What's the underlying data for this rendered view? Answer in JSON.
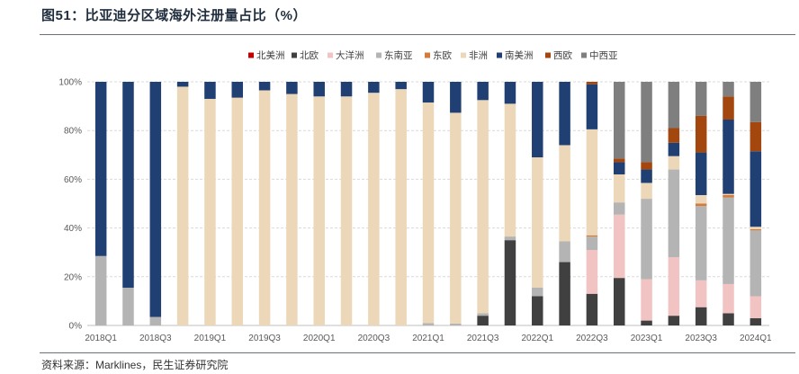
{
  "page": {
    "title": "图51：比亚迪分区域海外注册量占比（%）",
    "source": "资料来源：Marklines，民生证券研究院"
  },
  "colors": {
    "北美洲": "#c00000",
    "北欧": "#404040",
    "大洋洲": "#f2c3c3",
    "东南亚": "#b4b4b4",
    "东欧": "#d47a3a",
    "非洲": "#ecd7b8",
    "南美洲": "#203f73",
    "西欧": "#a3470e",
    "中西亚": "#7f7f7f"
  },
  "chart_data": {
    "type": "bar",
    "stacked": true,
    "title": "图51：比亚迪分区域海外注册量占比（%）",
    "ylim": [
      0,
      100
    ],
    "yticks": [
      "0%",
      "20%",
      "40%",
      "60%",
      "80%",
      "100%"
    ],
    "ytick_values": [
      0,
      20,
      40,
      60,
      80,
      100
    ],
    "legend_position": "top",
    "categories": [
      "2018Q1",
      "2018Q2",
      "2018Q3",
      "2018Q4",
      "2019Q1",
      "2019Q2",
      "2019Q3",
      "2019Q4",
      "2020Q1",
      "2020Q2",
      "2020Q3",
      "2020Q4",
      "2021Q1",
      "2021Q2",
      "2021Q3",
      "2021Q4",
      "2022Q1",
      "2022Q2",
      "2022Q3",
      "2022Q4",
      "2023Q1",
      "2023Q2",
      "2023Q3",
      "2023Q4",
      "2024Q1"
    ],
    "xtick_labels": [
      "2018Q1",
      "",
      "2018Q3",
      "",
      "2019Q1",
      "",
      "2019Q3",
      "",
      "2020Q1",
      "",
      "2020Q3",
      "",
      "2021Q1",
      "",
      "2021Q3",
      "",
      "2022Q1",
      "",
      "2022Q3",
      "",
      "2023Q1",
      "",
      "2023Q3",
      "",
      "2024Q1"
    ],
    "series": [
      {
        "name": "北美洲",
        "values": [
          0,
          0,
          0,
          0,
          0,
          0,
          0,
          0,
          0,
          0,
          0,
          0,
          0,
          0,
          0,
          0,
          0,
          0,
          0,
          0,
          0,
          0,
          0,
          0,
          0
        ]
      },
      {
        "name": "北欧",
        "values": [
          0,
          0,
          0,
          0,
          0,
          0,
          0,
          0,
          0,
          0,
          0,
          0,
          0,
          0,
          4,
          35,
          12,
          26,
          13,
          19.5,
          2,
          4,
          7.5,
          5,
          3
        ]
      },
      {
        "name": "大洋洲",
        "values": [
          0,
          0,
          0,
          0,
          0,
          0,
          0,
          0,
          0,
          0,
          0,
          0,
          0,
          0,
          0,
          0,
          0,
          0,
          18,
          26,
          17,
          24,
          11,
          12,
          9
        ]
      },
      {
        "name": "东南亚",
        "values": [
          28.5,
          15.5,
          3.5,
          0,
          0,
          0,
          0,
          0,
          0,
          0,
          0,
          0,
          1,
          0.8,
          1,
          1.5,
          3.5,
          8.5,
          5.5,
          5,
          33,
          36,
          30.5,
          35.5,
          27
        ]
      },
      {
        "name": "东欧",
        "values": [
          0,
          0,
          0,
          0,
          0,
          0,
          0,
          0,
          0,
          0,
          0,
          0,
          0,
          0,
          0,
          0,
          0,
          0,
          0.5,
          0,
          0,
          0,
          1,
          1,
          0.5
        ]
      },
      {
        "name": "非洲",
        "values": [
          0,
          0,
          0,
          98,
          93,
          93.5,
          96.5,
          95,
          94,
          94,
          95.5,
          97,
          90.5,
          86.5,
          87.5,
          54.5,
          53.5,
          39.5,
          43.5,
          11.5,
          6.5,
          5.5,
          3.5,
          0.5,
          1
        ]
      },
      {
        "name": "南美洲",
        "values": [
          71.5,
          84.5,
          96.5,
          2,
          7,
          6.5,
          3.5,
          5,
          6,
          6,
          4.5,
          3,
          8.5,
          12.7,
          7.5,
          9,
          31,
          26,
          18.5,
          5,
          5.5,
          5.5,
          17.5,
          30.5,
          31
        ]
      },
      {
        "name": "西欧",
        "values": [
          0,
          0,
          0,
          0,
          0,
          0,
          0,
          0,
          0,
          0,
          0,
          0,
          0,
          0,
          0,
          0,
          0,
          0,
          1,
          1.5,
          3,
          6,
          15,
          9.5,
          12
        ]
      },
      {
        "name": "中西亚",
        "values": [
          0,
          0,
          0,
          0,
          0,
          0,
          0,
          0,
          0,
          0,
          0,
          0,
          0,
          0,
          0,
          0,
          0,
          0,
          0,
          31.5,
          33,
          19,
          14,
          6,
          16.5
        ]
      }
    ]
  }
}
